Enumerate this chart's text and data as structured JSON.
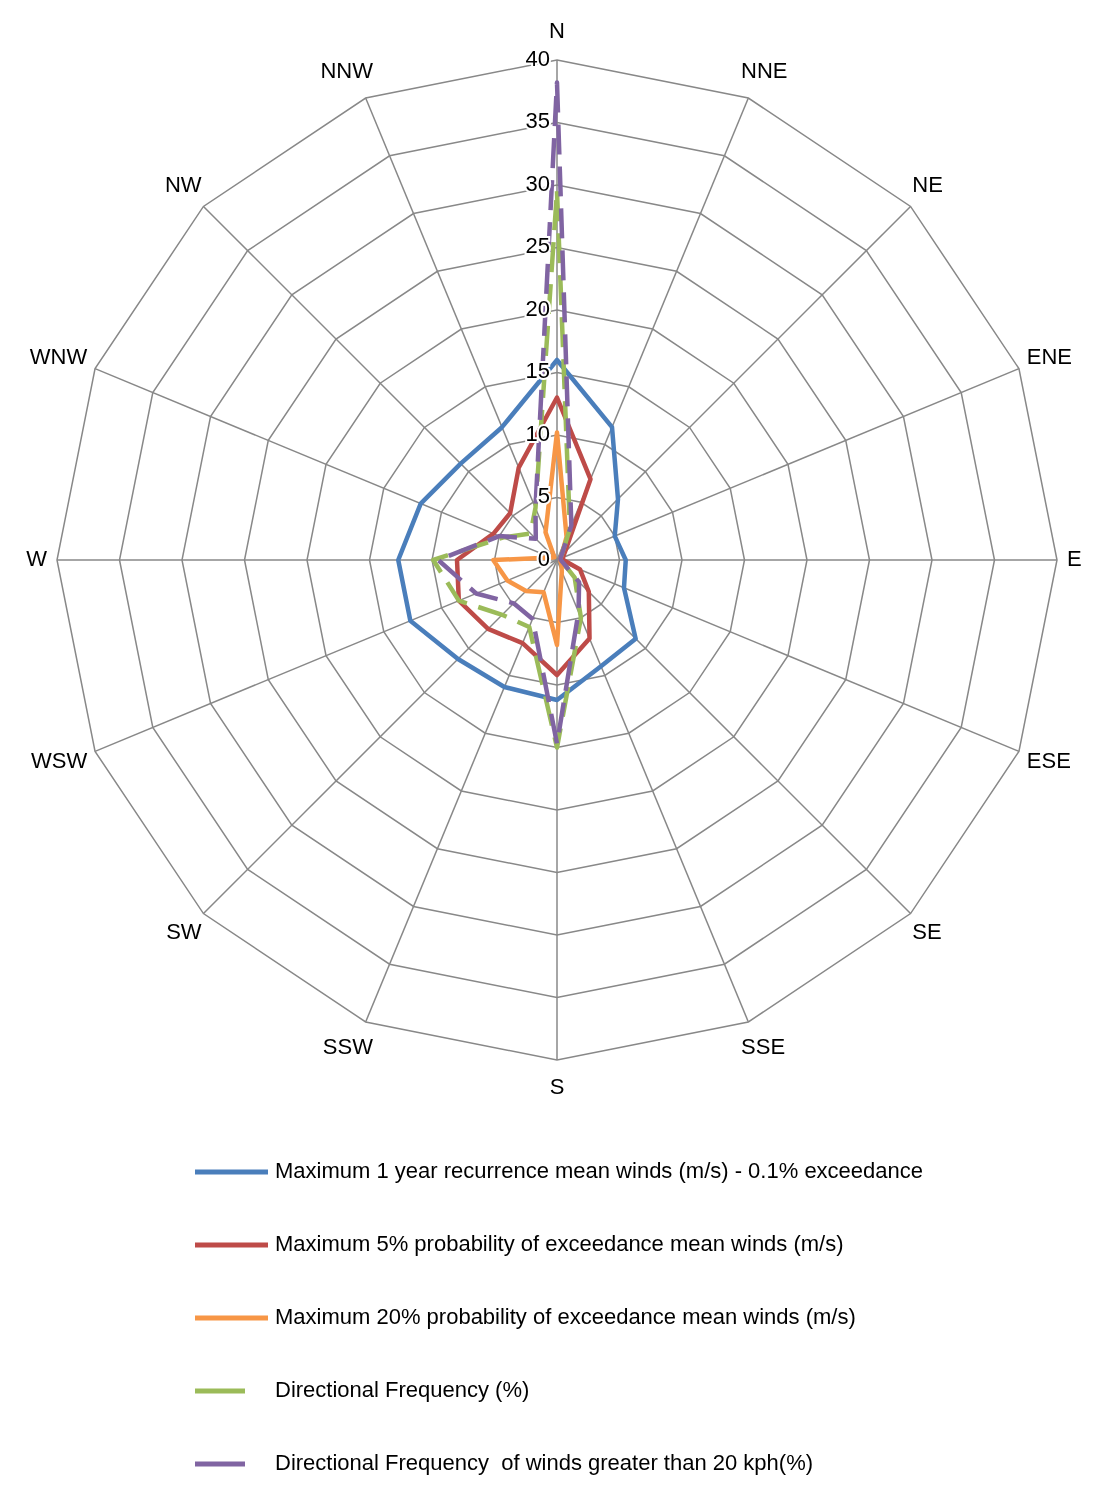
{
  "chart_data": {
    "type": "radar",
    "categories": [
      "N",
      "NNE",
      "NE",
      "ENE",
      "E",
      "ESE",
      "SE",
      "SSE",
      "S",
      "SSW",
      "SW",
      "WSW",
      "W",
      "WNW",
      "NW",
      "NNW"
    ],
    "ylim": [
      0,
      40
    ],
    "yticks": [
      0,
      5,
      10,
      15,
      20,
      25,
      30,
      35,
      40
    ],
    "grid": true,
    "legend": "bottom",
    "marker": "none",
    "series": [
      {
        "name": "Maximum 1 year recurrence mean winds (m/s) - 0.1% exceedance",
        "color": "#4a7ebb",
        "line_style": "solid",
        "values": [
          16,
          11.5,
          6.9,
          5,
          5.5,
          5.8,
          8.9,
          9.2,
          11.2,
          11,
          11.2,
          12.7,
          12.7,
          11.8,
          10.9,
          11.5
        ]
      },
      {
        "name": "Maximum 5% probability of exceedance mean winds (m/s)",
        "color": "#be4b48",
        "line_style": "solid",
        "values": [
          13,
          7,
          0.9,
          0.5,
          0.5,
          2,
          3.6,
          6.8,
          9.2,
          7.2,
          7.8,
          8.5,
          8,
          5.5,
          5.3,
          8
        ]
      },
      {
        "name": "Maximum 20% probability of exceedance mean winds (m/s)",
        "color": "#f79646",
        "line_style": "solid",
        "values": [
          10.2,
          2,
          0.5,
          0.3,
          0.3,
          0.3,
          0.5,
          1,
          6.8,
          2.8,
          3.5,
          4.3,
          5.1,
          0.5,
          0.3,
          2.4
        ]
      },
      {
        "name": "Directional Frequency (%)",
        "color": "#9bbb59",
        "line_style": "dashed",
        "values": [
          29.5,
          2.7,
          0.5,
          0.3,
          0.3,
          0.5,
          2,
          5,
          15,
          5.8,
          6.2,
          8.5,
          9.9,
          4.7,
          3,
          4.5
        ]
      },
      {
        "name": "Directional Frequency  of winds greater than 20 kph(%)",
        "color": "#8064a2",
        "line_style": "dashed",
        "values": [
          38.2,
          3,
          0.5,
          0.3,
          0.3,
          0.5,
          2.5,
          4.5,
          14.7,
          5.1,
          4.9,
          7,
          9.5,
          5,
          2.4,
          4.5
        ]
      }
    ]
  }
}
